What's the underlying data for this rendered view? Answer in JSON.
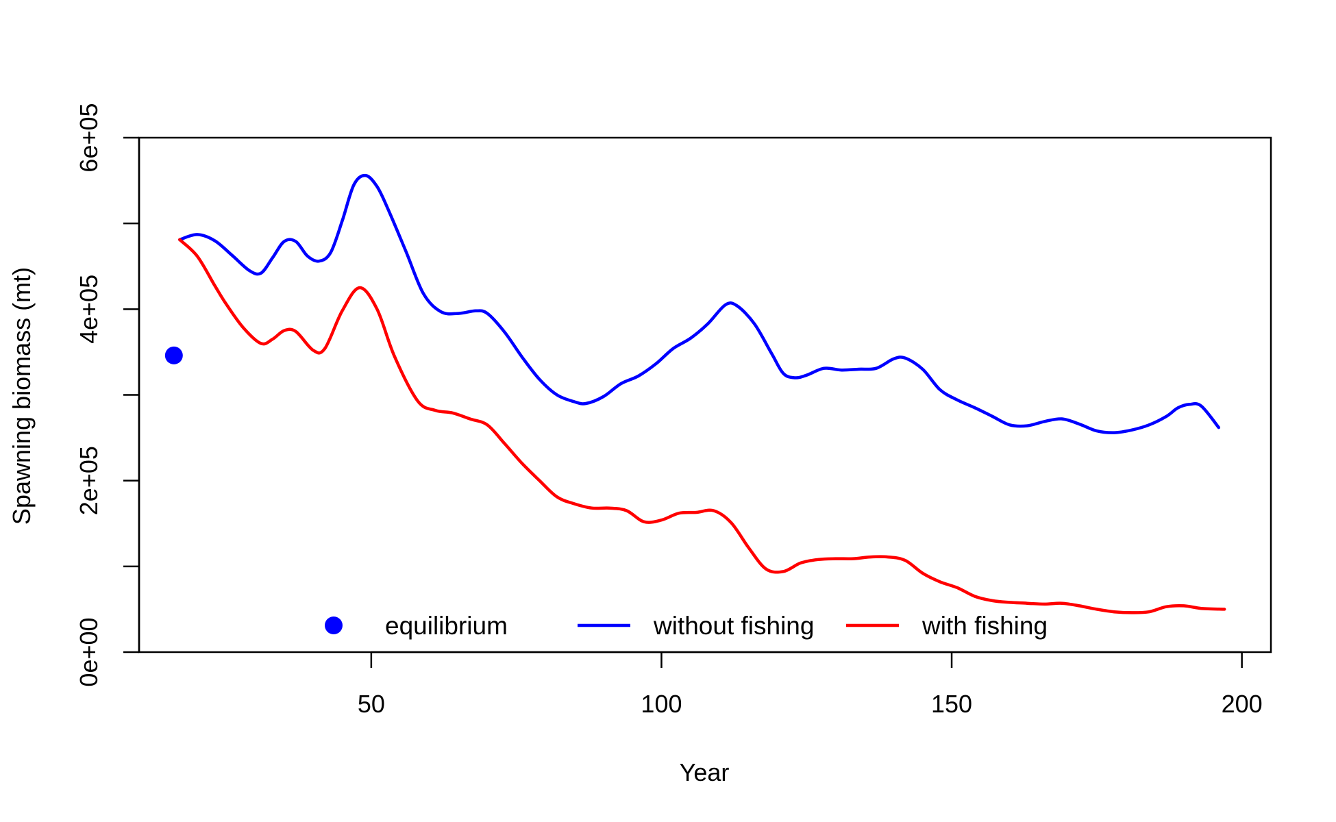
{
  "chart_data": {
    "type": "line",
    "xlabel": "Year",
    "ylabel": "Spawning biomass (mt)",
    "xlim": [
      10,
      205
    ],
    "ylim": [
      0,
      600000
    ],
    "x_ticks": [
      50,
      100,
      150,
      200
    ],
    "x_tick_labels": [
      "50",
      "100",
      "150",
      "200"
    ],
    "y_ticks": [
      0,
      100000,
      200000,
      300000,
      400000,
      500000,
      600000
    ],
    "y_tick_labels": [
      "0e+00",
      "",
      "2e+05",
      "",
      "4e+05",
      "",
      "6e+05"
    ],
    "grid": false,
    "legend_position": "bottom",
    "legend": [
      {
        "label": "equilibrium",
        "symbol": "point",
        "color": "#0000FF"
      },
      {
        "label": "without fishing",
        "symbol": "line",
        "color": "#0000FF"
      },
      {
        "label": "with fishing",
        "symbol": "line",
        "color": "#FF0000"
      }
    ],
    "equilibrium_point": {
      "x": 16,
      "y": 346000
    },
    "series": [
      {
        "name": "without fishing",
        "color": "#0000FF",
        "x": [
          17,
          20,
          23,
          26,
          29,
          31,
          33,
          35,
          37,
          39,
          41,
          43,
          45,
          47,
          49,
          51,
          53,
          56,
          59,
          62,
          65,
          68,
          70,
          73,
          76,
          79,
          82,
          85,
          87,
          90,
          93,
          96,
          99,
          102,
          105,
          108,
          111,
          113,
          116,
          119,
          121,
          123,
          125,
          128,
          131,
          134,
          137,
          140,
          142,
          145,
          148,
          151,
          154,
          157,
          160,
          163,
          166,
          169,
          172,
          175,
          178,
          181,
          184,
          187,
          189,
          191,
          193,
          196
        ],
        "y": [
          481000,
          487000,
          480000,
          463000,
          445000,
          442000,
          460000,
          479000,
          479000,
          462000,
          456000,
          466000,
          503000,
          545000,
          556000,
          543000,
          515000,
          467000,
          418000,
          397000,
          395000,
          398000,
          395000,
          373000,
          344000,
          318000,
          300000,
          292000,
          290000,
          298000,
          313000,
          322000,
          336000,
          354000,
          366000,
          383000,
          405000,
          404000,
          383000,
          348000,
          325000,
          320000,
          323000,
          331000,
          329000,
          330000,
          331000,
          342000,
          343000,
          330000,
          306000,
          294000,
          285000,
          275000,
          265000,
          264000,
          269000,
          272000,
          266000,
          258000,
          256000,
          259000,
          265000,
          275000,
          285000,
          289000,
          287000,
          262000
        ]
      },
      {
        "name": "with fishing",
        "color": "#FF0000",
        "x": [
          17,
          20,
          23,
          25,
          28,
          31,
          33,
          35,
          37,
          40,
          42,
          45,
          48,
          51,
          54,
          58,
          61,
          64,
          67,
          70,
          73,
          76,
          79,
          82,
          85,
          88,
          91,
          94,
          97,
          100,
          103,
          106,
          109,
          112,
          115,
          118,
          121,
          124,
          127,
          130,
          133,
          136,
          139,
          142,
          145,
          148,
          151,
          154,
          157,
          160,
          163,
          166,
          169,
          172,
          175,
          178,
          181,
          184,
          187,
          190,
          193,
          197
        ],
        "y": [
          481000,
          462000,
          428000,
          406000,
          378000,
          360000,
          365000,
          375000,
          374000,
          352000,
          354000,
          398000,
          425000,
          400000,
          345000,
          293000,
          282000,
          279000,
          272000,
          265000,
          243000,
          220000,
          200000,
          181000,
          173000,
          168000,
          168000,
          165000,
          152000,
          154000,
          162000,
          163000,
          165000,
          151000,
          122000,
          97000,
          94000,
          104000,
          108000,
          109000,
          109000,
          111000,
          111000,
          107000,
          92000,
          82000,
          75000,
          65000,
          60000,
          58000,
          57000,
          56000,
          57000,
          54000,
          50000,
          47000,
          46000,
          47000,
          53000,
          54000,
          51000,
          50000
        ]
      }
    ]
  }
}
